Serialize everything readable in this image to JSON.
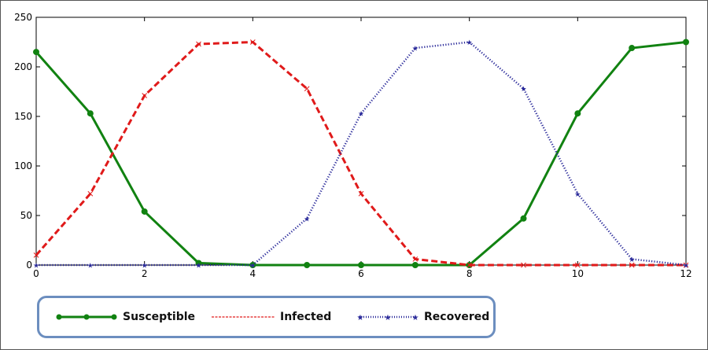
{
  "chart_data": {
    "type": "line",
    "title": "",
    "xlabel": "",
    "ylabel": "",
    "xlim": [
      0,
      12
    ],
    "ylim": [
      0,
      250
    ],
    "xticks": [
      0,
      2,
      4,
      6,
      8,
      10,
      12
    ],
    "yticks": [
      0,
      50,
      100,
      150,
      200,
      250
    ],
    "grid": false,
    "legend_position": "bottom-left, outside plot",
    "x": [
      0,
      1,
      2,
      3,
      4,
      5,
      6,
      7,
      8,
      9,
      10,
      11,
      12
    ],
    "series": [
      {
        "name": "Susceptible",
        "color": "#118211",
        "style": "solid",
        "marker": "circle",
        "values": [
          215,
          153,
          54,
          2,
          0,
          0,
          0,
          0,
          0,
          47,
          153,
          219,
          225
        ]
      },
      {
        "name": "Infected",
        "color": "#e01a1a",
        "style": "dashed",
        "marker": "cross",
        "values": [
          10,
          72,
          171,
          223,
          225,
          178,
          72,
          6,
          0,
          0,
          0,
          0,
          0
        ]
      },
      {
        "name": "Recovered",
        "color": "#2a2a9a",
        "style": "dotted",
        "marker": "star",
        "values": [
          0,
          0,
          0,
          0,
          0,
          47,
          153,
          219,
          225,
          178,
          72,
          6,
          0
        ]
      }
    ]
  }
}
